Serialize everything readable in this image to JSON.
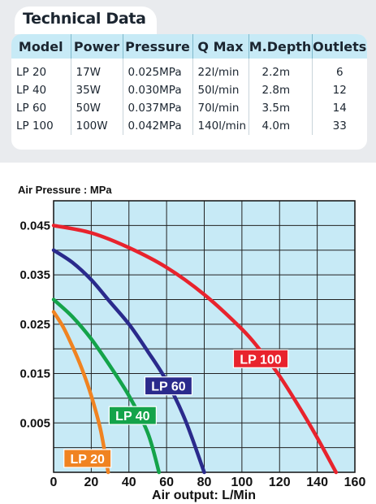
{
  "technical_data": {
    "title": "Technical Data",
    "headers": [
      "Model",
      "Power",
      "Pressure",
      "Q  Max",
      "M.Depth",
      "Outlets"
    ],
    "rows": [
      [
        "LP 20",
        "17W",
        "0.025MPa",
        "22l/min",
        "2.2m",
        "6"
      ],
      [
        "LP 40",
        "35W",
        "0.030MPa",
        "50l/min",
        "2.8m",
        "12"
      ],
      [
        "LP 60",
        "50W",
        "0.037MPa",
        "70l/min",
        "3.5m",
        "14"
      ],
      [
        "LP 100",
        "100W",
        "0.042MPa",
        "140l/min",
        "4.0m",
        "33"
      ]
    ]
  },
  "chart_data": {
    "type": "line",
    "ylabel": "Air Pressure : MPa",
    "xlabel": "Air output: L/Min",
    "xlim": [
      0,
      160
    ],
    "ylim": [
      -0.005,
      0.05
    ],
    "x_ticks": [
      0,
      20,
      40,
      60,
      80,
      100,
      120,
      140,
      160
    ],
    "x_tick_labels": [
      "0",
      "20",
      "40",
      "60",
      "80",
      "100",
      "120",
      "140",
      "160"
    ],
    "y_ticks": [
      0.005,
      0.015,
      0.025,
      0.035,
      0.045
    ],
    "y_tick_labels": [
      "0.005",
      "0.015",
      "0.025",
      "0.035",
      "0.045"
    ],
    "grid": true,
    "series": [
      {
        "name": "LP 100",
        "color": "#e8232d",
        "label_at": [
          110,
          0.018
        ],
        "points": [
          [
            0,
            0.045
          ],
          [
            20,
            0.0435
          ],
          [
            40,
            0.0405
          ],
          [
            60,
            0.0365
          ],
          [
            80,
            0.031
          ],
          [
            100,
            0.024
          ],
          [
            110,
            0.0196
          ],
          [
            120,
            0.0145
          ],
          [
            130,
            0.0085
          ],
          [
            140,
            0.002
          ],
          [
            150,
            -0.005
          ]
        ]
      },
      {
        "name": "LP 60",
        "color": "#2a2a8c",
        "label_at": [
          61,
          0.0125
        ],
        "points": [
          [
            0,
            0.04
          ],
          [
            10,
            0.0375
          ],
          [
            20,
            0.034
          ],
          [
            30,
            0.0295
          ],
          [
            40,
            0.025
          ],
          [
            50,
            0.0195
          ],
          [
            60,
            0.0135
          ],
          [
            70,
            0.0055
          ],
          [
            80,
            -0.005
          ]
        ]
      },
      {
        "name": "LP 40",
        "color": "#14a34a",
        "label_at": [
          42,
          0.0065
        ],
        "points": [
          [
            0,
            0.03
          ],
          [
            10,
            0.0265
          ],
          [
            20,
            0.022
          ],
          [
            30,
            0.0165
          ],
          [
            40,
            0.0105
          ],
          [
            50,
            0.003
          ],
          [
            56,
            -0.005
          ]
        ]
      },
      {
        "name": "LP 20",
        "color": "#f08321",
        "label_at": [
          18,
          -0.0022
        ],
        "points": [
          [
            0,
            0.0275
          ],
          [
            5,
            0.0245
          ],
          [
            10,
            0.0205
          ],
          [
            15,
            0.016
          ],
          [
            20,
            0.0105
          ],
          [
            25,
            0.0035
          ],
          [
            29,
            -0.005
          ]
        ]
      }
    ]
  }
}
